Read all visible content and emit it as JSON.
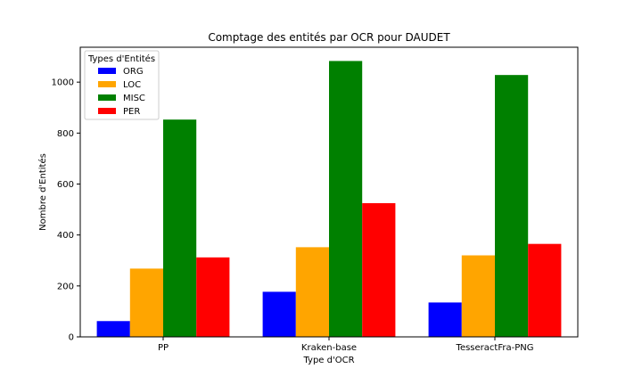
{
  "chart_data": {
    "type": "bar",
    "title": "Comptage des entités par OCR pour DAUDET",
    "xlabel": "Type d'OCR",
    "ylabel": "Nombre d'Entités",
    "categories": [
      "PP",
      "Kraken-base",
      "TesseractFra-PNG"
    ],
    "series": [
      {
        "name": "ORG",
        "color": "#0000ff",
        "values": [
          62,
          177,
          135
        ]
      },
      {
        "name": "LOC",
        "color": "#ffa500",
        "values": [
          268,
          352,
          320
        ]
      },
      {
        "name": "MISC",
        "color": "#008000",
        "values": [
          853,
          1083,
          1028
        ]
      },
      {
        "name": "PER",
        "color": "#ff0000",
        "values": [
          312,
          525,
          365
        ]
      }
    ],
    "ylim": [
      0,
      1137
    ],
    "yticks": [
      0,
      200,
      400,
      600,
      800,
      1000
    ],
    "legend": {
      "title": "Types d'Entités",
      "placement": "top-left"
    },
    "grid": false
  }
}
